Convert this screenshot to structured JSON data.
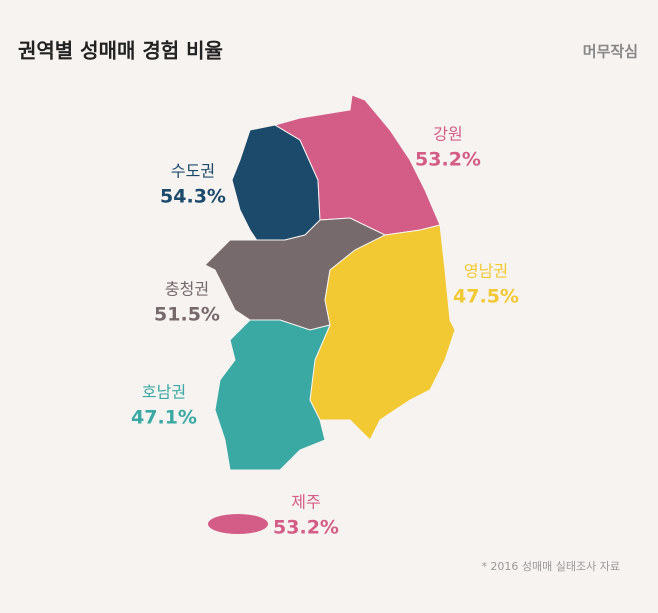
{
  "title": "권역별 성매매 경험 비율",
  "logo": "머무작심",
  "footnote": "* 2016 성매매 실태조사 자료",
  "regions": [
    {
      "name": "수도권",
      "value": 54.3,
      "value_label": "54.3%",
      "color": "#1c4a6b"
    },
    {
      "name": "강원",
      "value": 53.2,
      "value_label": "53.2%",
      "color": "#d45d87"
    },
    {
      "name": "충청권",
      "value": 51.5,
      "value_label": "51.5%",
      "color": "#766a6c"
    },
    {
      "name": "영남권",
      "value": 47.5,
      "value_label": "47.5%",
      "color": "#f2c933"
    },
    {
      "name": "호남권",
      "value": 47.1,
      "value_label": "47.1%",
      "color": "#3aa9a3"
    },
    {
      "name": "제주",
      "value": 53.2,
      "value_label": "53.2%",
      "color": "#d45d87"
    }
  ]
}
